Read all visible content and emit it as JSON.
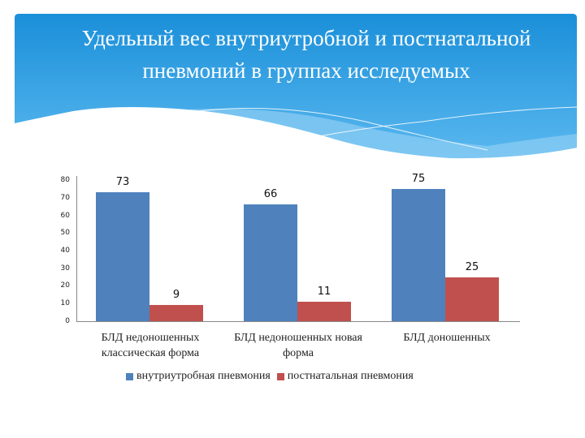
{
  "slide": {
    "title_line1": "Удельный вес внутриутробной и постнатальной",
    "title_line2": "пневмоний в группах исследуемых",
    "banner_color_top": "#1a8fd9",
    "banner_color_bottom": "#56b6ee"
  },
  "chart_data": {
    "type": "bar",
    "title": "Удельный вес внутриутробной и постнатальной пневмоний в группах исследуемых",
    "categories": [
      "БЛД недоношенных классическая форма",
      "БЛД недоношенных новая форма",
      "БЛД доношенных"
    ],
    "category_lines": [
      [
        "БЛД недоношенных",
        "классическая форма"
      ],
      [
        "БЛД недоношенных новая",
        "форма"
      ],
      [
        "БЛД доношенных",
        ""
      ]
    ],
    "series": [
      {
        "name": "внутриутробная пневмония",
        "color": "#4f81bd",
        "values": [
          73,
          66,
          75
        ]
      },
      {
        "name": "постнатальная пневмония",
        "color": "#c0504d",
        "values": [
          9,
          11,
          25
        ]
      }
    ],
    "data_labels": [
      [
        "73",
        "66",
        "75"
      ],
      [
        "9",
        "11",
        "25"
      ]
    ],
    "xlabel": "",
    "ylabel": "",
    "ylim": [
      0,
      80
    ],
    "yticks": [
      "80",
      "70",
      "60",
      "50",
      "40",
      "30",
      "20",
      "10",
      "0"
    ],
    "grid": false,
    "legend_position": "bottom"
  }
}
